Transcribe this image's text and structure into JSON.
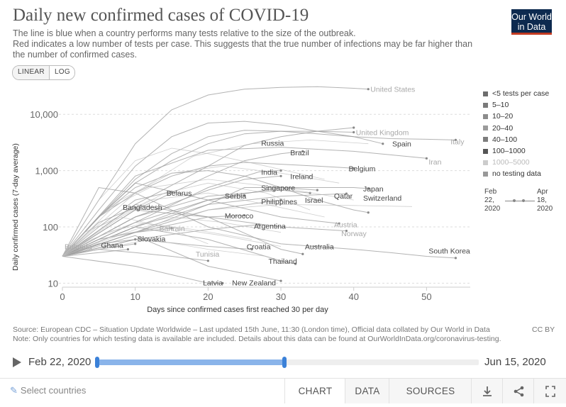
{
  "header": {
    "title": "Daily new confirmed cases of COVID-19",
    "subtitle_lines": [
      "The line is blue when a country performs many tests relative to the size of the outbreak.",
      "Red indicates a low number of tests per case. This suggests that the true number of infections may be far higher than",
      "the number of confirmed cases."
    ],
    "logo_line1": "Our World",
    "logo_line2": "in Data"
  },
  "scale_toggle": {
    "linear_label": "LINEAR",
    "log_label": "LOG",
    "selected": "LOG"
  },
  "chart_data": {
    "type": "line",
    "xlabel": "Days since confirmed cases first reached 30 per day",
    "ylabel": "Daily confirmed cases (7-day average)",
    "x_ticks": [
      0,
      10,
      20,
      30,
      40,
      50
    ],
    "y_ticks": [
      10,
      100,
      1000,
      10000
    ],
    "y_tick_labels": [
      "10",
      "100",
      "1,000",
      "10,000"
    ],
    "y_scale": "log",
    "xlim": [
      0,
      56
    ],
    "ylim": [
      8.5,
      35000
    ],
    "grid": "horizontal",
    "series": [
      {
        "name": "United States",
        "x": [
          0,
          5,
          10,
          15,
          20,
          25,
          30,
          35,
          40,
          42
        ],
        "y": [
          30,
          300,
          3000,
          12000,
          22000,
          28000,
          30000,
          31000,
          29000,
          28000
        ]
      },
      {
        "name": "United Kingdom",
        "x": [
          0,
          5,
          10,
          15,
          20,
          25,
          30,
          35,
          40
        ],
        "y": [
          30,
          150,
          600,
          1500,
          3000,
          4500,
          5000,
          5000,
          4800
        ]
      },
      {
        "name": "Spain",
        "x": [
          0,
          5,
          10,
          15,
          20,
          25,
          30,
          35,
          40,
          44
        ],
        "y": [
          30,
          200,
          1200,
          4000,
          7000,
          7500,
          6500,
          5000,
          4000,
          3000
        ]
      },
      {
        "name": "Italy",
        "x": [
          0,
          5,
          10,
          15,
          20,
          25,
          30,
          35,
          40,
          45,
          50,
          54
        ],
        "y": [
          30,
          150,
          700,
          2000,
          4000,
          5200,
          5000,
          4500,
          4000,
          3700,
          3600,
          3500
        ]
      },
      {
        "name": "Iran",
        "x": [
          0,
          10,
          20,
          30,
          40,
          50
        ],
        "y": [
          30,
          800,
          2300,
          2600,
          2200,
          1650
        ]
      },
      {
        "name": "Russia",
        "x": [
          0,
          10,
          20,
          25,
          30,
          35,
          40
        ],
        "y": [
          30,
          250,
          1200,
          2800,
          4000,
          5000,
          5800
        ]
      },
      {
        "name": "Brazil",
        "x": [
          0,
          10,
          20,
          25,
          30,
          33
        ],
        "y": [
          30,
          200,
          800,
          1500,
          2000,
          2200
        ]
      },
      {
        "name": "Belgium",
        "x": [
          0,
          5,
          10,
          15,
          20,
          25,
          30,
          35,
          40
        ],
        "y": [
          30,
          150,
          400,
          800,
          1200,
          1400,
          1300,
          1200,
          1100
        ]
      },
      {
        "name": "India",
        "x": [
          0,
          10,
          20,
          27,
          30
        ],
        "y": [
          30,
          120,
          500,
          950,
          1000
        ]
      },
      {
        "name": "Ireland",
        "x": [
          0,
          10,
          20,
          25,
          30
        ],
        "y": [
          30,
          150,
          450,
          700,
          800
        ]
      },
      {
        "name": "Singapore",
        "x": [
          0,
          10,
          20,
          25,
          30,
          35
        ],
        "y": [
          30,
          80,
          250,
          500,
          500,
          450
        ]
      },
      {
        "name": "Japan",
        "x": [
          0,
          10,
          20,
          30,
          40,
          42
        ],
        "y": [
          30,
          100,
          300,
          500,
          500,
          480
        ]
      },
      {
        "name": "Qatar",
        "x": [
          0,
          10,
          20,
          30,
          39
        ],
        "y": [
          30,
          100,
          250,
          350,
          390
        ]
      },
      {
        "name": "Switzerland",
        "x": [
          0,
          5,
          10,
          15,
          20,
          25,
          30,
          35,
          40,
          42
        ],
        "y": [
          30,
          150,
          500,
          900,
          1000,
          800,
          500,
          300,
          200,
          180
        ]
      },
      {
        "name": "Belarus",
        "x": [
          0,
          5,
          10,
          15
        ],
        "y": [
          30,
          100,
          300,
          420
        ]
      },
      {
        "name": "Serbia",
        "x": [
          0,
          10,
          20,
          25
        ],
        "y": [
          30,
          120,
          300,
          360
        ]
      },
      {
        "name": "Philippines",
        "x": [
          0,
          10,
          20,
          30
        ],
        "y": [
          30,
          80,
          200,
          300
        ]
      },
      {
        "name": "Israel",
        "x": [
          0,
          10,
          20,
          30,
          34
        ],
        "y": [
          30,
          150,
          350,
          450,
          400
        ]
      },
      {
        "name": "Bangladesh",
        "x": [
          0,
          5,
          10
        ],
        "y": [
          30,
          120,
          220
        ]
      },
      {
        "name": "Morocco",
        "x": [
          0,
          10,
          20,
          25
        ],
        "y": [
          30,
          80,
          150,
          160
        ]
      },
      {
        "name": "Austria",
        "x": [
          0,
          5,
          10,
          20,
          30,
          38
        ],
        "y": [
          30,
          150,
          600,
          300,
          150,
          115
        ]
      },
      {
        "name": "Argentina",
        "x": [
          0,
          10,
          20,
          27
        ],
        "y": [
          30,
          60,
          90,
          110
        ]
      },
      {
        "name": "Norway",
        "x": [
          0,
          10,
          20,
          30,
          39
        ],
        "y": [
          30,
          200,
          150,
          100,
          85
        ]
      },
      {
        "name": "Bahrain",
        "x": [
          0,
          5,
          10,
          15
        ],
        "y": [
          30,
          60,
          80,
          95
        ]
      },
      {
        "name": "Slovakia",
        "x": [
          0,
          5,
          10
        ],
        "y": [
          30,
          50,
          60
        ]
      },
      {
        "name": "Ghana",
        "x": [
          0,
          5,
          10
        ],
        "y": [
          30,
          40,
          50
        ]
      },
      {
        "name": "Bulgaria",
        "x": [
          0,
          5,
          9
        ],
        "y": [
          30,
          35,
          40
        ]
      },
      {
        "name": "Tunisia",
        "x": [
          0,
          5,
          10,
          15,
          20
        ],
        "y": [
          30,
          40,
          35,
          30,
          25
        ]
      },
      {
        "name": "Croatia",
        "x": [
          0,
          10,
          20,
          26
        ],
        "y": [
          30,
          60,
          45,
          40
        ]
      },
      {
        "name": "Australia",
        "x": [
          0,
          10,
          20,
          30,
          33
        ],
        "y": [
          30,
          250,
          150,
          40,
          33
        ]
      },
      {
        "name": "Thailand",
        "x": [
          0,
          10,
          20,
          30,
          32
        ],
        "y": [
          30,
          100,
          60,
          25,
          22
        ]
      },
      {
        "name": "South Korea",
        "x": [
          0,
          5,
          10,
          20,
          30,
          40,
          45,
          50,
          54
        ],
        "y": [
          30,
          500,
          400,
          100,
          50,
          40,
          35,
          30,
          28
        ]
      },
      {
        "name": "Latvia",
        "x": [
          0,
          10,
          20,
          22
        ],
        "y": [
          30,
          20,
          10,
          10
        ]
      },
      {
        "name": "New Zealand",
        "x": [
          0,
          10,
          20,
          30
        ],
        "y": [
          30,
          70,
          20,
          11
        ]
      }
    ],
    "label_positions": {
      "United States": [
        42,
        28000
      ],
      "United Kingdom": [
        40,
        4800
      ],
      "Spain": [
        45,
        3000
      ],
      "Italy": [
        53,
        3300
      ],
      "Iran": [
        50,
        1450
      ],
      "Russia": [
        27,
        3100
      ],
      "Brazil": [
        31,
        2100
      ],
      "Belgium": [
        39,
        1100
      ],
      "India": [
        27,
        950
      ],
      "Ireland": [
        31,
        800
      ],
      "Singapore": [
        27,
        500
      ],
      "Japan": [
        41,
        480
      ],
      "Qatar": [
        37,
        360
      ],
      "Switzerland": [
        41,
        330
      ],
      "Belarus": [
        14,
        400
      ],
      "Serbia": [
        22,
        360
      ],
      "Philippines": [
        27,
        285
      ],
      "Israel": [
        33,
        300
      ],
      "Bangladesh": [
        8,
        225
      ],
      "Morocco": [
        22,
        160
      ],
      "Austria": [
        37,
        110
      ],
      "Argentina": [
        26,
        105
      ],
      "Norway": [
        38,
        77
      ],
      "Bahrain": [
        13,
        95
      ],
      "Slovakia": [
        10,
        62
      ],
      "Ghana": [
        5,
        48
      ],
      "Bulgaria": [
        0,
        45
      ],
      "Tunisia": [
        18,
        33
      ],
      "Croatia": [
        25,
        45
      ],
      "Australia": [
        33,
        45
      ],
      "Thailand": [
        28,
        25
      ],
      "South Korea": [
        50,
        38
      ],
      "Latvia": [
        19,
        10.2
      ],
      "New Zealand": [
        23,
        10.2
      ]
    }
  },
  "legend": {
    "items": [
      {
        "label": "<5 tests per case",
        "color": "#6d6d6d"
      },
      {
        "label": "5–10",
        "color": "#7a7a7a"
      },
      {
        "label": "10–20",
        "color": "#8c8c8c"
      },
      {
        "label": "20–40",
        "color": "#9b9b9b"
      },
      {
        "label": "40–100",
        "color": "#7d7d7d"
      },
      {
        "label": "100–1000",
        "color": "#555555"
      },
      {
        "label": "1000–5000",
        "color": "#cccccc"
      },
      {
        "label": "no testing data",
        "color": "#999999"
      }
    ],
    "timeline_from": "Feb 22, 2020",
    "timeline_to": "Apr 18, 2020"
  },
  "source": {
    "line1": "Source: European CDC – Situation Update Worldwide – Last updated 15th June, 11:30 (London time), Official data collated by Our World in Data",
    "line2": "Note: Only countries for which testing data is available are included. Details about this data can be found at OurWorldInData.org/coronavirus-testing.",
    "license": "CC BY"
  },
  "timeline": {
    "start_label": "Feb 22, 2020",
    "end_label": "Jun 15, 2020",
    "selection_end_fraction": 0.49
  },
  "footer": {
    "select_countries": "Select countries",
    "tabs": [
      "CHART",
      "DATA",
      "SOURCES"
    ],
    "active_tab": "CHART",
    "icons": [
      "download-icon",
      "share-icon",
      "fullscreen-icon"
    ]
  },
  "colors": {
    "line": "#9a9a9a",
    "label": "#777777",
    "highlight_label": "#a9a9a9",
    "timeline_fill": "#8ab4ea",
    "timeline_handle": "#3b81d8",
    "logo_bg": "#0d2a4f",
    "logo_accent": "#c23b22"
  }
}
